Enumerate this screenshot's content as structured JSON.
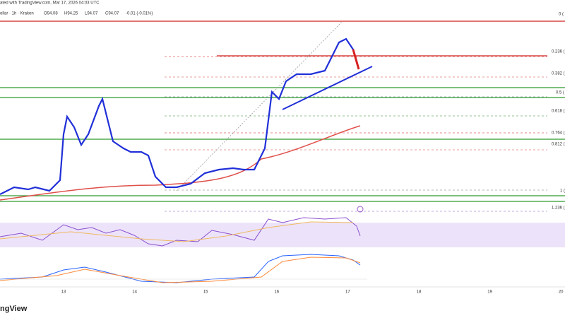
{
  "header": {
    "credit": "ated with TradingView.com, Mar 17, 2026 04:03 UTC",
    "symbol": "ollar · 1h · Kraken",
    "ohlc": [
      "O94.08",
      "H94.25",
      "L94.07",
      "C94.07",
      "-0.01 (-0.01%)"
    ]
  },
  "fib_levels": [
    "0 (",
    "0.236 (",
    "0.382 (",
    "0.5 (",
    "0.618 (",
    "0.764 (",
    "0.812 (",
    "1 (",
    "1.236 ("
  ],
  "x_axis": {
    "labels": [
      "13",
      "14",
      "15",
      "16",
      "17",
      "18",
      "19",
      "20"
    ]
  },
  "logo": "ngView"
}
